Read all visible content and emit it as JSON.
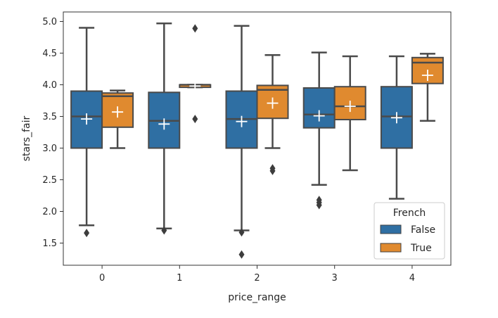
{
  "chart_data": {
    "type": "box",
    "title": "",
    "xlabel": "price_range",
    "ylabel": "stars_fair",
    "categories": [
      "0",
      "1",
      "2",
      "3",
      "4"
    ],
    "ylim": [
      1.25,
      5.1
    ],
    "yticks": [
      "1.5",
      "2.0",
      "2.5",
      "3.0",
      "3.5",
      "4.0",
      "4.5",
      "5.0"
    ],
    "grid": false,
    "legend": {
      "title": "French",
      "position": "bottom-right"
    },
    "mean_marker": "+",
    "series": [
      {
        "name": "False",
        "color": "#2f6fa3",
        "boxes": [
          {
            "category": "0",
            "whisker_low": 1.78,
            "q1": 3.0,
            "median": 3.5,
            "q3": 3.9,
            "whisker_high": 4.9,
            "mean": 3.46,
            "outliers": [
              1.66
            ]
          },
          {
            "category": "1",
            "whisker_low": 1.73,
            "q1": 3.0,
            "median": 3.43,
            "q3": 3.88,
            "whisker_high": 4.97,
            "mean": 3.38,
            "outliers": [
              1.7
            ]
          },
          {
            "category": "2",
            "whisker_low": 1.7,
            "q1": 3.0,
            "median": 3.46,
            "q3": 3.9,
            "whisker_high": 4.93,
            "mean": 3.42,
            "outliers": [
              1.67,
              1.32
            ]
          },
          {
            "category": "3",
            "whisker_low": 2.42,
            "q1": 3.32,
            "median": 3.53,
            "q3": 3.95,
            "whisker_high": 4.51,
            "mean": 3.51,
            "outliers": [
              2.18,
              2.14,
              2.1
            ]
          },
          {
            "category": "4",
            "whisker_low": 2.2,
            "q1": 3.0,
            "median": 3.5,
            "q3": 3.97,
            "whisker_high": 4.45,
            "mean": 3.48,
            "outliers": []
          }
        ]
      },
      {
        "name": "True",
        "color": "#e08a2f",
        "boxes": [
          {
            "category": "0",
            "whisker_low": 3.0,
            "q1": 3.33,
            "median": 3.82,
            "q3": 3.87,
            "whisker_high": 3.91,
            "mean": 3.57,
            "outliers": []
          },
          {
            "category": "1",
            "whisker_low": 3.96,
            "q1": 3.96,
            "median": 4.0,
            "q3": 4.0,
            "whisker_high": 4.0,
            "mean": 3.98,
            "outliers": [
              4.89,
              3.46
            ]
          },
          {
            "category": "2",
            "whisker_low": 3.0,
            "q1": 3.47,
            "median": 3.92,
            "q3": 3.99,
            "whisker_high": 4.47,
            "mean": 3.71,
            "outliers": [
              2.68,
              2.64
            ]
          },
          {
            "category": "3",
            "whisker_low": 2.65,
            "q1": 3.45,
            "median": 3.66,
            "q3": 3.97,
            "whisker_high": 4.45,
            "mean": 3.66,
            "outliers": []
          },
          {
            "category": "4",
            "whisker_low": 3.43,
            "q1": 4.02,
            "median": 4.35,
            "q3": 4.43,
            "whisker_high": 4.49,
            "mean": 4.15,
            "outliers": []
          }
        ]
      }
    ]
  }
}
